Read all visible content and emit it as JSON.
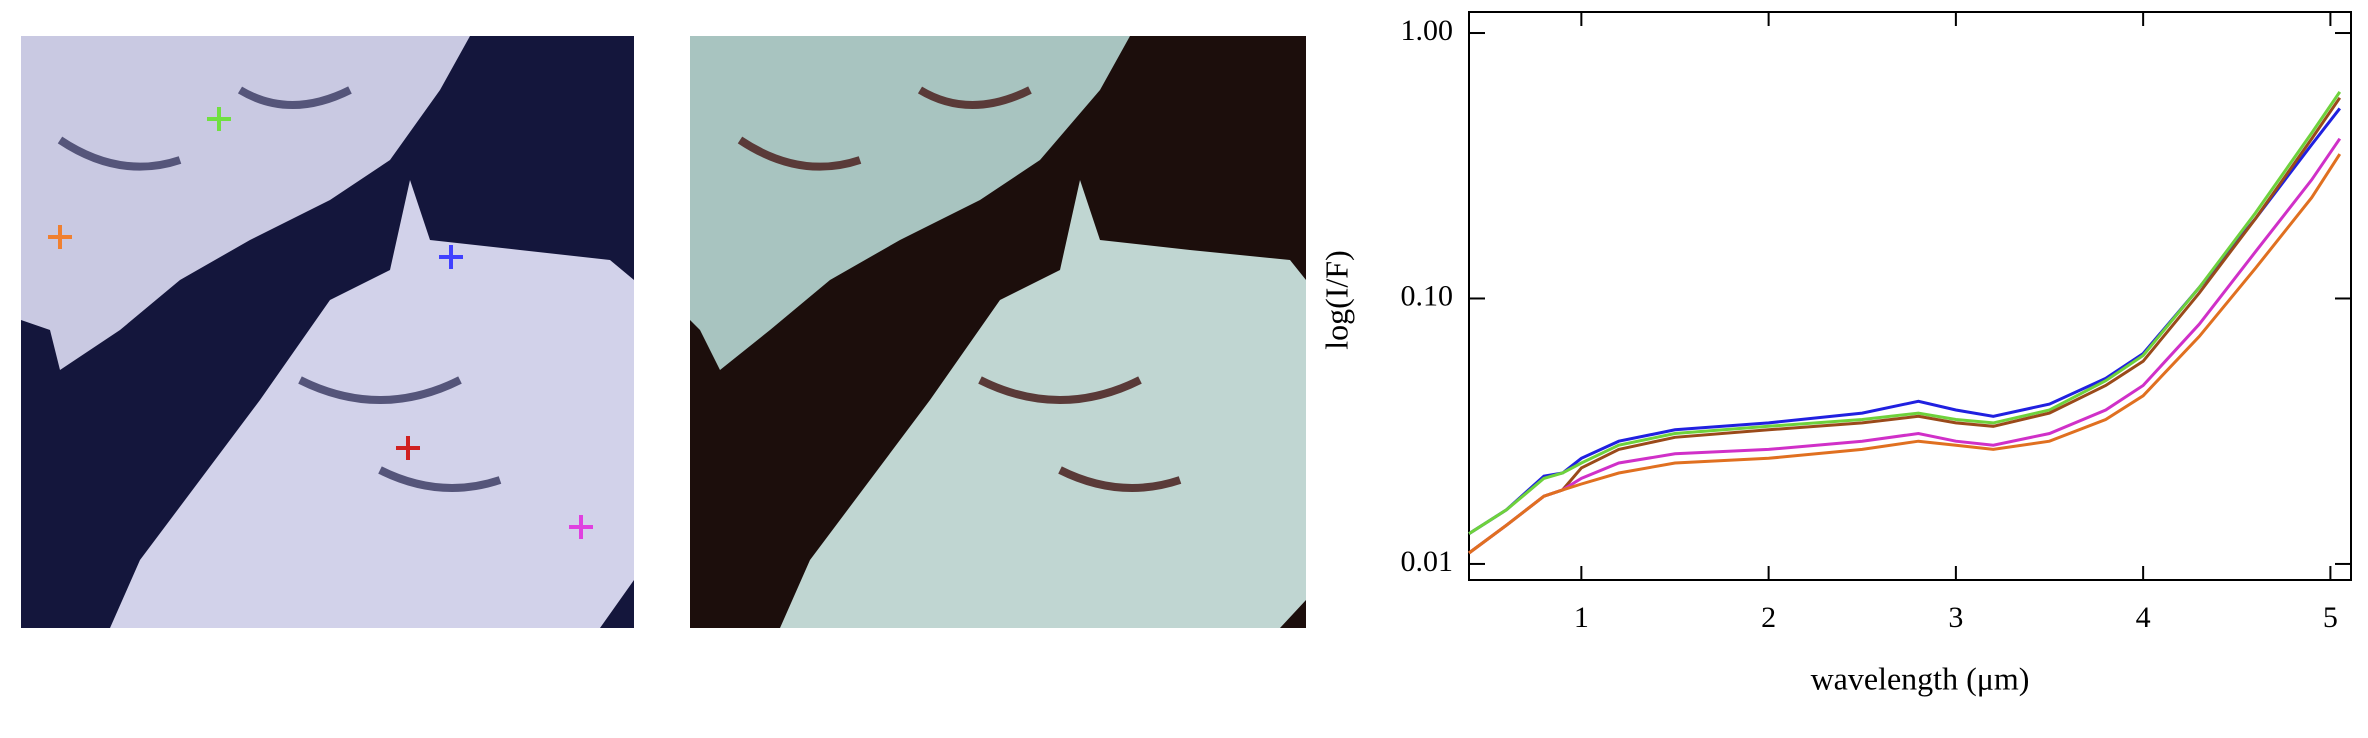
{
  "chart_data": {
    "type": "line",
    "x_label": "wavelength (μm)",
    "y_label": "log(I/F)",
    "log_y": true,
    "x": [
      0.4,
      0.6,
      0.8,
      0.9,
      1.0,
      1.2,
      1.5,
      2.0,
      2.5,
      2.8,
      3.0,
      3.2,
      3.5,
      3.8,
      4.0,
      4.3,
      4.6,
      4.9,
      5.05
    ],
    "series": [
      {
        "color": "#2020e0",
        "values": [
          0.013,
          0.016,
          0.0214,
          0.022,
          0.025,
          0.029,
          0.032,
          0.034,
          0.037,
          0.041,
          0.038,
          0.036,
          0.04,
          0.05,
          0.062,
          0.11,
          0.2,
          0.38,
          0.52
        ]
      },
      {
        "color": "#6ed23c",
        "values": [
          0.013,
          0.016,
          0.021,
          0.022,
          0.024,
          0.028,
          0.031,
          0.033,
          0.035,
          0.037,
          0.035,
          0.034,
          0.038,
          0.049,
          0.061,
          0.11,
          0.21,
          0.42,
          0.6
        ]
      },
      {
        "color": "#9a4a1a",
        "values": [
          0.011,
          0.014,
          0.018,
          0.019,
          0.023,
          0.027,
          0.03,
          0.032,
          0.034,
          0.036,
          0.034,
          0.033,
          0.037,
          0.047,
          0.058,
          0.105,
          0.2,
          0.4,
          0.57
        ]
      },
      {
        "color": "#d030c8",
        "values": [
          0.011,
          0.014,
          0.018,
          0.019,
          0.021,
          0.024,
          0.026,
          0.027,
          0.029,
          0.031,
          0.029,
          0.028,
          0.031,
          0.038,
          0.047,
          0.08,
          0.15,
          0.28,
          0.4
        ]
      },
      {
        "color": "#e07020",
        "values": [
          0.011,
          0.014,
          0.018,
          0.019,
          0.02,
          0.022,
          0.024,
          0.025,
          0.027,
          0.029,
          0.028,
          0.027,
          0.029,
          0.035,
          0.043,
          0.072,
          0.13,
          0.24,
          0.35
        ]
      }
    ],
    "xlim": [
      0.4,
      5.11
    ],
    "ylim": [
      0.0087,
      1.2
    ],
    "xticks": [
      1,
      2,
      3,
      4,
      5
    ],
    "yticks": [
      {
        "value": 0.01,
        "label": "0.01"
      },
      {
        "value": 0.1,
        "label": "0.10"
      },
      {
        "value": 1,
        "label": "1.00"
      }
    ]
  }
}
